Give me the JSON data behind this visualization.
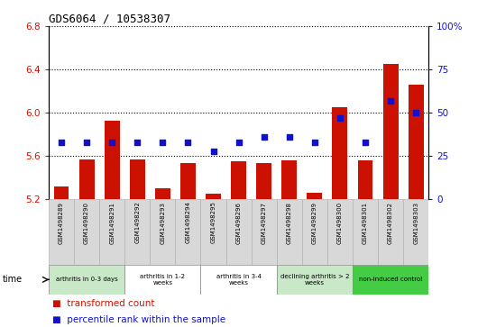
{
  "title": "GDS6064 / 10538307",
  "samples": [
    "GSM1498289",
    "GSM1498290",
    "GSM1498291",
    "GSM1498292",
    "GSM1498293",
    "GSM1498294",
    "GSM1498295",
    "GSM1498296",
    "GSM1498297",
    "GSM1498298",
    "GSM1498299",
    "GSM1498300",
    "GSM1498301",
    "GSM1498302",
    "GSM1498303"
  ],
  "transformed_counts": [
    5.32,
    5.57,
    5.93,
    5.57,
    5.3,
    5.54,
    5.25,
    5.55,
    5.54,
    5.56,
    5.26,
    6.05,
    5.56,
    6.45,
    6.26
  ],
  "percentile_ranks": [
    33,
    33,
    33,
    33,
    33,
    33,
    28,
    33,
    36,
    36,
    33,
    47,
    33,
    57,
    50
  ],
  "groups": [
    {
      "label": "arthritis in 0-3 days",
      "start": 0,
      "end": 3,
      "color": "#c8e8c8"
    },
    {
      "label": "arthritis in 1-2\nweeks",
      "start": 3,
      "end": 6,
      "color": "#ffffff"
    },
    {
      "label": "arthritis in 3-4\nweeks",
      "start": 6,
      "end": 9,
      "color": "#ffffff"
    },
    {
      "label": "declining arthritis > 2\nweeks",
      "start": 9,
      "end": 12,
      "color": "#c8e8c8"
    },
    {
      "label": "non-induced control",
      "start": 12,
      "end": 15,
      "color": "#44cc44"
    }
  ],
  "bar_color": "#cc1100",
  "dot_color": "#1111cc",
  "ylim_left": [
    5.2,
    6.8
  ],
  "ylim_right": [
    0,
    100
  ],
  "yticks_left": [
    5.2,
    5.6,
    6.0,
    6.4,
    6.8
  ],
  "yticks_right": [
    0,
    25,
    50,
    75,
    100
  ],
  "grid_color": "#000000",
  "background_color": "#ffffff"
}
